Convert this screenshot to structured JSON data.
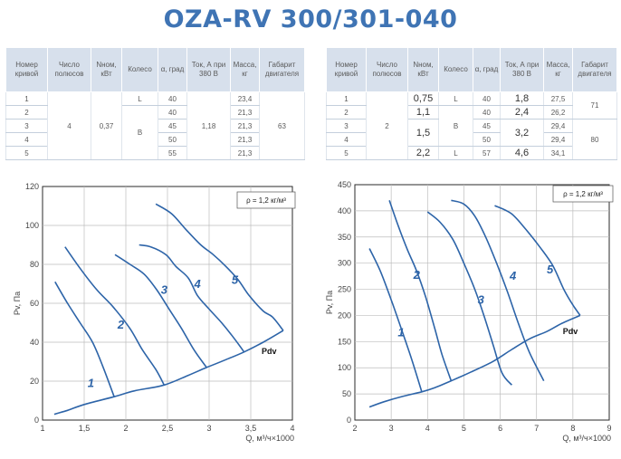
{
  "title": "OZA-RV 300/301-040",
  "colors": {
    "title": "#3f74b4",
    "curve": "#2d64a8",
    "header_bg": "#d7e0ec"
  },
  "table1": {
    "headers": [
      "Номер кривой",
      "Число полюсов",
      "Nном, кВт",
      "Колесо",
      "α, град",
      "Ток, А при 380 В",
      "Масса, кг",
      "Габарит двигателя"
    ],
    "rows": [
      [
        "1",
        "4",
        "0,37",
        "L",
        "40",
        "1,18",
        "23,4",
        "63"
      ],
      [
        "2",
        "",
        "",
        "B",
        "40",
        "",
        "21,3",
        ""
      ],
      [
        "3",
        "",
        "",
        "",
        "45",
        "",
        "21,3",
        ""
      ],
      [
        "4",
        "",
        "",
        "",
        "50",
        "",
        "21,3",
        ""
      ],
      [
        "5",
        "",
        "",
        "",
        "55",
        "",
        "21,3",
        ""
      ]
    ]
  },
  "table2": {
    "headers": [
      "Номер кривой",
      "Число полюсов",
      "Nном, кВт",
      "Колесо",
      "α, град",
      "Ток, А при 380 В",
      "Масса, кг",
      "Габарит двигателя"
    ],
    "rows": [
      [
        "1",
        "2",
        "0,75",
        "L",
        "40",
        "1,8",
        "27,5",
        "71"
      ],
      [
        "2",
        "",
        "1,1",
        "B",
        "40",
        "2,4",
        "26,2",
        ""
      ],
      [
        "3",
        "",
        "1,5",
        "",
        "45",
        "3,2",
        "29,4",
        "80"
      ],
      [
        "4",
        "",
        "",
        "",
        "50",
        "",
        "29,4",
        ""
      ],
      [
        "5",
        "",
        "2,2",
        "L",
        "57",
        "4,6",
        "34,1",
        ""
      ]
    ]
  },
  "chart_data": [
    {
      "type": "line",
      "ylabel": "Pv, Па",
      "xlabel": "Q, м³/ч×1000",
      "density_label": "ρ = 1,2 кг/м³",
      "pdv_label": "Pdv",
      "xlim": [
        1,
        4
      ],
      "ylim": [
        0,
        120
      ],
      "x_ticks": [
        "1",
        "1,5",
        "2",
        "2,5",
        "3",
        "3,5",
        "4"
      ],
      "x_tick_values": [
        1,
        1.5,
        2,
        2.5,
        3,
        3.5,
        4
      ],
      "y_ticks": [
        "0",
        "20",
        "40",
        "60",
        "80",
        "100",
        "120"
      ],
      "y_tick_values": [
        0,
        20,
        40,
        60,
        80,
        100,
        120
      ],
      "grid": true,
      "series": [
        {
          "name": "1",
          "label_at": [
            1.58,
            17
          ],
          "points": [
            [
              1.15,
              71
            ],
            [
              1.3,
              60
            ],
            [
              1.45,
              50
            ],
            [
              1.6,
              40
            ],
            [
              1.72,
              28
            ],
            [
              1.86,
              12
            ]
          ]
        },
        {
          "name": "2",
          "label_at": [
            1.94,
            47
          ],
          "points": [
            [
              1.27,
              89
            ],
            [
              1.45,
              78
            ],
            [
              1.65,
              67
            ],
            [
              1.85,
              58
            ],
            [
              2.05,
              47
            ],
            [
              2.2,
              36
            ],
            [
              2.36,
              26
            ],
            [
              2.46,
              18
            ]
          ]
        },
        {
          "name": "3",
          "label_at": [
            2.46,
            65
          ],
          "points": [
            [
              1.87,
              85
            ],
            [
              2.05,
              80
            ],
            [
              2.22,
              75
            ],
            [
              2.37,
              67
            ],
            [
              2.52,
              57
            ],
            [
              2.67,
              47
            ],
            [
              2.82,
              36
            ],
            [
              2.97,
              27
            ]
          ]
        },
        {
          "name": "4",
          "label_at": [
            2.86,
            68
          ],
          "points": [
            [
              2.16,
              90
            ],
            [
              2.3,
              89
            ],
            [
              2.48,
              85
            ],
            [
              2.6,
              79
            ],
            [
              2.75,
              73
            ],
            [
              2.86,
              64
            ],
            [
              3.0,
              57
            ],
            [
              3.15,
              50
            ],
            [
              3.3,
              42
            ],
            [
              3.42,
              35
            ]
          ]
        },
        {
          "name": "5",
          "label_at": [
            3.31,
            70
          ],
          "points": [
            [
              2.36,
              111
            ],
            [
              2.55,
              106
            ],
            [
              2.72,
              98
            ],
            [
              2.9,
              90
            ],
            [
              3.05,
              85
            ],
            [
              3.2,
              79
            ],
            [
              3.35,
              72
            ],
            [
              3.48,
              64
            ],
            [
              3.65,
              56
            ],
            [
              3.76,
              53
            ],
            [
              3.89,
              46
            ]
          ]
        },
        {
          "name": "Pdv",
          "label_at": [
            3.72,
            34
          ],
          "points": [
            [
              1.14,
              3
            ],
            [
              1.3,
              5
            ],
            [
              1.5,
              8
            ],
            [
              1.86,
              12
            ],
            [
              2.1,
              15
            ],
            [
              2.46,
              18
            ],
            [
              2.75,
              23
            ],
            [
              2.97,
              27
            ],
            [
              3.2,
              31
            ],
            [
              3.42,
              35
            ],
            [
              3.65,
              40
            ],
            [
              3.89,
              46
            ]
          ]
        }
      ]
    },
    {
      "type": "line",
      "ylabel": "Pv, Па",
      "xlabel": "Q, м³/ч×1000",
      "density_label": "ρ = 1,2 кг/м³",
      "pdv_label": "Pdv",
      "xlim": [
        2,
        9
      ],
      "ylim": [
        0,
        450
      ],
      "x_ticks": [
        "2",
        "3",
        "4",
        "5",
        "6",
        "7",
        "8",
        "9"
      ],
      "x_tick_values": [
        2,
        3,
        4,
        5,
        6,
        7,
        8,
        9
      ],
      "y_ticks": [
        "0",
        "50",
        "100",
        "150",
        "200",
        "250",
        "300",
        "350",
        "400",
        "450"
      ],
      "y_tick_values": [
        0,
        50,
        100,
        150,
        200,
        250,
        300,
        350,
        400,
        450
      ],
      "grid": true,
      "series": [
        {
          "name": "1",
          "label_at": [
            3.27,
            160
          ],
          "points": [
            [
              2.4,
              328
            ],
            [
              2.7,
              285
            ],
            [
              3.0,
              230
            ],
            [
              3.3,
              170
            ],
            [
              3.57,
              115
            ],
            [
              3.84,
              54
            ]
          ]
        },
        {
          "name": "2",
          "label_at": [
            3.7,
            270
          ],
          "points": [
            [
              2.95,
              420
            ],
            [
              3.2,
              370
            ],
            [
              3.45,
              325
            ],
            [
              3.7,
              285
            ],
            [
              3.95,
              235
            ],
            [
              4.2,
              175
            ],
            [
              4.4,
              125
            ],
            [
              4.65,
              75
            ]
          ]
        },
        {
          "name": "3",
          "label_at": [
            5.47,
            222
          ],
          "points": [
            [
              4.0,
              398
            ],
            [
              4.35,
              378
            ],
            [
              4.7,
              345
            ],
            [
              5.0,
              300
            ],
            [
              5.3,
              250
            ],
            [
              5.55,
              200
            ],
            [
              5.8,
              145
            ],
            [
              6.05,
              90
            ],
            [
              6.32,
              67
            ]
          ]
        },
        {
          "name": "4",
          "label_at": [
            6.35,
            268
          ],
          "points": [
            [
              4.65,
              420
            ],
            [
              5.0,
              413
            ],
            [
              5.3,
              390
            ],
            [
              5.6,
              350
            ],
            [
              5.9,
              300
            ],
            [
              6.2,
              245
            ],
            [
              6.5,
              185
            ],
            [
              6.8,
              130
            ],
            [
              7.2,
              75
            ]
          ]
        },
        {
          "name": "5",
          "label_at": [
            7.37,
            280
          ],
          "points": [
            [
              5.85,
              410
            ],
            [
              6.3,
              395
            ],
            [
              6.7,
              365
            ],
            [
              7.1,
              330
            ],
            [
              7.45,
              295
            ],
            [
              7.75,
              250
            ],
            [
              8.0,
              220
            ],
            [
              8.2,
              200
            ]
          ]
        },
        {
          "name": "Pdv",
          "label_at": [
            7.93,
            164
          ],
          "points": [
            [
              2.4,
              25
            ],
            [
              2.8,
              35
            ],
            [
              3.3,
              45
            ],
            [
              3.84,
              54
            ],
            [
              4.2,
              62
            ],
            [
              4.65,
              75
            ],
            [
              5.2,
              92
            ],
            [
              5.8,
              112
            ],
            [
              6.32,
              135
            ],
            [
              6.8,
              155
            ],
            [
              7.3,
              170
            ],
            [
              7.7,
              185
            ],
            [
              8.2,
              200
            ]
          ]
        }
      ]
    }
  ]
}
